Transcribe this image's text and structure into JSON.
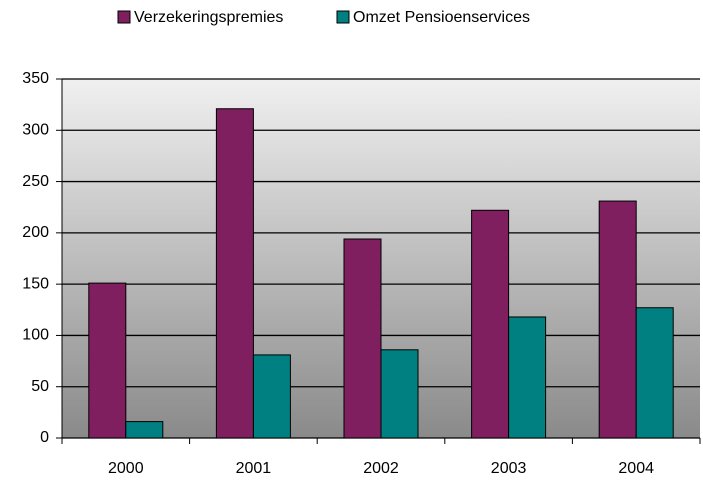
{
  "chart_data": {
    "type": "bar",
    "categories": [
      "2000",
      "2001",
      "2002",
      "2003",
      "2004"
    ],
    "series": [
      {
        "name": "Verzekeringspremies",
        "color": "#7f1f5f",
        "values": [
          151,
          321,
          194,
          222,
          231
        ]
      },
      {
        "name": "Omzet Pensioenservices",
        "color": "#008080",
        "values": [
          16,
          81,
          86,
          118,
          127
        ]
      }
    ],
    "ylim": [
      0,
      350
    ],
    "yticks": [
      0,
      50,
      100,
      150,
      200,
      250,
      300,
      350
    ],
    "grid": true,
    "legend": "top"
  }
}
